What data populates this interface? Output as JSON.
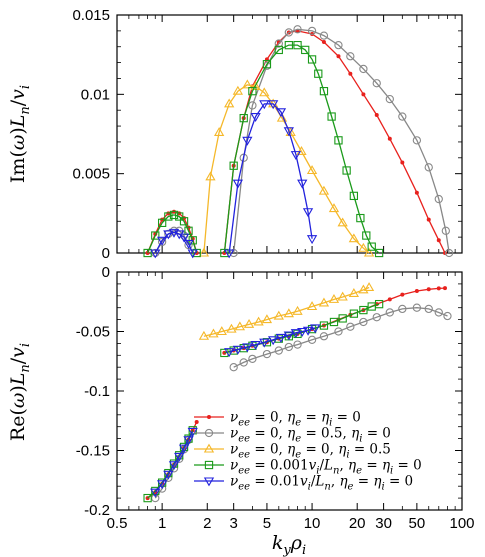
{
  "chart_data": [
    {
      "type": "scatter",
      "panel": "top",
      "ylabel": "Im(ω)L_n/v_i",
      "ylabel_parts": {
        "pre": "Im(",
        "omega": "ω",
        "mid": ")",
        "L": "L",
        "n": "n",
        "slash": "/",
        "v": "v",
        "i": "i"
      },
      "xscale": "log",
      "xlim": [
        0.5,
        100
      ],
      "ylim": [
        0,
        0.015
      ],
      "yticks": [
        0,
        0.005,
        0.01,
        0.015
      ],
      "ytick_labels": [
        "0",
        "0.005",
        "0.01",
        "0.015"
      ],
      "series": [
        {
          "key": "s1",
          "color": "#e8211d",
          "marker": "dot",
          "segments": [
            {
              "x": [
                0.8,
                0.9,
                1.0,
                1.1,
                1.2,
                1.3,
                1.4,
                1.5,
                1.6,
                1.7
              ],
              "y": [
                0.0,
                0.0012,
                0.0021,
                0.0025,
                0.0026,
                0.0025,
                0.0022,
                0.0016,
                0.0009,
                0.0
              ]
            },
            {
              "x": [
                2.6,
                3.0,
                3.5,
                4,
                5,
                6,
                7,
                8,
                10,
                12,
                15,
                18,
                22,
                27,
                33,
                40,
                50,
                60,
                70,
                77
              ],
              "y": [
                0.0,
                0.0055,
                0.0085,
                0.0105,
                0.0122,
                0.0133,
                0.0139,
                0.014,
                0.0138,
                0.0133,
                0.0124,
                0.0113,
                0.01,
                0.0087,
                0.0072,
                0.0057,
                0.0038,
                0.0021,
                0.0008,
                0.0
              ]
            }
          ]
        },
        {
          "key": "s2",
          "color": "#888888",
          "marker": "circle",
          "segments": [
            {
              "x": [
                0.9,
                1.0,
                1.1,
                1.2,
                1.3,
                1.4,
                1.5
              ],
              "y": [
                0.0,
                0.0007,
                0.0012,
                0.0014,
                0.0014,
                0.0011,
                0.0005
              ]
            },
            {
              "x": [
                3.0,
                3.5,
                4,
                5,
                6,
                7,
                8,
                10,
                12,
                15,
                18,
                22,
                27,
                33,
                40,
                50,
                60,
                70,
                78,
                82
              ],
              "y": [
                0.0,
                0.006,
                0.0093,
                0.0118,
                0.0132,
                0.0139,
                0.0141,
                0.014,
                0.0137,
                0.0131,
                0.0124,
                0.0116,
                0.0107,
                0.0097,
                0.0086,
                0.0071,
                0.0054,
                0.0034,
                0.0014,
                0.0
              ]
            }
          ]
        },
        {
          "key": "s3",
          "color": "#f5b82a",
          "marker": "triangle-up",
          "segments": [
            {
              "x": [
                1.9,
                2.1,
                2.4,
                2.8,
                3.2,
                3.7,
                4.2,
                4.8,
                5.5,
                6.3,
                7.2,
                8.5,
                10,
                12,
                14,
                16,
                19,
                22,
                24
              ],
              "y": [
                0.0,
                0.0048,
                0.0076,
                0.0094,
                0.0102,
                0.0106,
                0.0105,
                0.0101,
                0.0094,
                0.0085,
                0.0076,
                0.0064,
                0.0052,
                0.0039,
                0.0028,
                0.0019,
                0.0009,
                0.0003,
                0.0
              ]
            }
          ]
        },
        {
          "key": "s4",
          "color": "#1a9a1a",
          "marker": "square",
          "segments": [
            {
              "x": [
                0.8,
                0.9,
                1.0,
                1.1,
                1.2,
                1.3,
                1.4,
                1.5,
                1.6,
                1.7
              ],
              "y": [
                0.0,
                0.0011,
                0.0019,
                0.0023,
                0.0024,
                0.0023,
                0.002,
                0.0014,
                0.0008,
                0.0
              ]
            },
            {
              "x": [
                2.6,
                3.0,
                3.5,
                4,
                5,
                6,
                7,
                8,
                9,
                10,
                11,
                12,
                13.5,
                15,
                17,
                19,
                21,
                23,
                25,
                28
              ],
              "y": [
                0.0,
                0.0055,
                0.0085,
                0.0102,
                0.0119,
                0.0128,
                0.0131,
                0.0131,
                0.0128,
                0.0122,
                0.0113,
                0.0102,
                0.0086,
                0.0071,
                0.0052,
                0.0036,
                0.0022,
                0.0011,
                0.0004,
                0.0
              ]
            }
          ]
        },
        {
          "key": "s5",
          "color": "#2222dd",
          "marker": "triangle-down",
          "segments": [
            {
              "x": [
                0.9,
                1.0,
                1.1,
                1.2,
                1.3,
                1.4,
                1.5,
                1.6
              ],
              "y": [
                0.0,
                0.0008,
                0.0012,
                0.0013,
                0.0012,
                0.001,
                0.0006,
                0.0
              ]
            },
            {
              "x": [
                2.8,
                3.2,
                3.7,
                4.2,
                4.8,
                5.5,
                6.2,
                7.0,
                7.8,
                8.6,
                9.4,
                10.0
              ],
              "y": [
                0.0,
                0.0044,
                0.0071,
                0.0086,
                0.0094,
                0.0094,
                0.0089,
                0.0077,
                0.0062,
                0.0044,
                0.0026,
                0.0009
              ]
            }
          ]
        }
      ]
    },
    {
      "type": "scatter",
      "panel": "bottom",
      "ylabel": "Re(ω)L_n/v_i",
      "ylabel_parts": {
        "pre": "Re(",
        "omega": "ω",
        "mid": ")",
        "L": "L",
        "n": "n",
        "slash": "/",
        "v": "v",
        "i": "i"
      },
      "xlabel": "k_y ρ_i",
      "xlabel_parts": {
        "k": "k",
        "y": "y",
        "rho": "ρ",
        "i": "i"
      },
      "xscale": "log",
      "xlim": [
        0.5,
        100
      ],
      "ylim": [
        -0.2,
        0
      ],
      "xticks": [
        0.5,
        1,
        2,
        3,
        5,
        10,
        20,
        30,
        50,
        100
      ],
      "xtick_labels": [
        "0.5",
        "1",
        "2",
        "3",
        "5",
        "10",
        "20",
        "30",
        "50",
        "100"
      ],
      "yticks": [
        -0.2,
        -0.15,
        -0.1,
        -0.05,
        0
      ],
      "ytick_labels": [
        "-0.2",
        "-0.15",
        "-0.1",
        "-0.05",
        "0"
      ],
      "series": [
        {
          "key": "s1",
          "color": "#e8211d",
          "marker": "dot",
          "segments": [
            {
              "x": [
                0.8,
                0.9,
                1.0,
                1.1,
                1.2,
                1.3,
                1.4,
                1.5,
                1.6,
                1.7
              ],
              "y": [
                -0.19,
                -0.185,
                -0.178,
                -0.17,
                -0.162,
                -0.155,
                -0.148,
                -0.141,
                -0.133,
                -0.126
              ]
            },
            {
              "x": [
                2.6,
                3,
                3.5,
                4,
                5,
                6,
                7,
                8,
                10,
                12,
                15,
                18,
                22,
                27,
                33,
                40,
                50,
                60,
                70,
                77
              ],
              "y": [
                -0.068,
                -0.066,
                -0.064,
                -0.062,
                -0.059,
                -0.056,
                -0.054,
                -0.052,
                -0.048,
                -0.045,
                -0.04,
                -0.036,
                -0.032,
                -0.027,
                -0.023,
                -0.019,
                -0.016,
                -0.0145,
                -0.0138,
                -0.0135
              ]
            }
          ]
        },
        {
          "key": "s2",
          "color": "#888888",
          "marker": "circle",
          "segments": [
            {
              "x": [
                0.9,
                1.0,
                1.1,
                1.2,
                1.3,
                1.4,
                1.5
              ],
              "y": [
                -0.19,
                -0.182,
                -0.173,
                -0.165,
                -0.157,
                -0.149,
                -0.141
              ]
            },
            {
              "x": [
                3.0,
                3.5,
                4,
                5,
                6,
                7,
                8,
                10,
                12,
                15,
                18,
                22,
                27,
                33,
                40,
                50,
                60,
                70,
                80
              ],
              "y": [
                -0.08,
                -0.076,
                -0.073,
                -0.069,
                -0.066,
                -0.063,
                -0.061,
                -0.057,
                -0.054,
                -0.05,
                -0.046,
                -0.042,
                -0.038,
                -0.034,
                -0.031,
                -0.03,
                -0.031,
                -0.034,
                -0.037
              ]
            }
          ]
        },
        {
          "key": "s3",
          "color": "#f5b82a",
          "marker": "triangle-up",
          "segments": [
            {
              "x": [
                1.9,
                2.2,
                2.5,
                2.9,
                3.3,
                3.8,
                4.4,
                5,
                6,
                7,
                8,
                10,
                12,
                14,
                16,
                19,
                22,
                24
              ],
              "y": [
                -0.054,
                -0.052,
                -0.05,
                -0.048,
                -0.046,
                -0.044,
                -0.042,
                -0.04,
                -0.037,
                -0.035,
                -0.033,
                -0.029,
                -0.026,
                -0.023,
                -0.021,
                -0.018,
                -0.015,
                -0.013
              ]
            }
          ]
        },
        {
          "key": "s4",
          "color": "#1a9a1a",
          "marker": "square",
          "segments": [
            {
              "x": [
                0.8,
                0.9,
                1.0,
                1.1,
                1.2,
                1.3,
                1.4,
                1.5,
                1.6
              ],
              "y": [
                -0.19,
                -0.184,
                -0.177,
                -0.169,
                -0.161,
                -0.154,
                -0.147,
                -0.14,
                -0.133
              ]
            },
            {
              "x": [
                2.6,
                3,
                3.5,
                4,
                5,
                6,
                7,
                8,
                10,
                12,
                14,
                16,
                19,
                22,
                25,
                28
              ],
              "y": [
                -0.068,
                -0.066,
                -0.064,
                -0.062,
                -0.059,
                -0.056,
                -0.054,
                -0.052,
                -0.048,
                -0.045,
                -0.042,
                -0.039,
                -0.035,
                -0.032,
                -0.029,
                -0.027
              ]
            }
          ]
        },
        {
          "key": "s5",
          "color": "#2222dd",
          "marker": "triangle-down",
          "segments": [
            {
              "x": [
                0.9,
                1.0,
                1.1,
                1.2,
                1.3,
                1.4,
                1.5,
                1.6
              ],
              "y": [
                -0.185,
                -0.178,
                -0.17,
                -0.162,
                -0.155,
                -0.148,
                -0.141,
                -0.134
              ]
            },
            {
              "x": [
                2.8,
                3.2,
                3.7,
                4.2,
                4.8,
                5.5,
                6.2,
                7,
                7.8,
                8.6,
                9.4,
                10.5
              ],
              "y": [
                -0.067,
                -0.065,
                -0.063,
                -0.061,
                -0.059,
                -0.057,
                -0.055,
                -0.053,
                -0.051,
                -0.05,
                -0.049,
                -0.047
              ]
            }
          ]
        }
      ],
      "legend": {
        "placement": "lower-right",
        "entries": [
          {
            "key": "s1",
            "parts": [
              "ν",
              "ee",
              " = 0,  ",
              "η",
              "e",
              " = ",
              "η",
              "i",
              " = 0"
            ]
          },
          {
            "key": "s2",
            "parts": [
              "ν",
              "ee",
              " = 0,  ",
              "η",
              "e",
              " = 0.5,  ",
              "η",
              "i",
              " = 0"
            ]
          },
          {
            "key": "s3",
            "parts": [
              "ν",
              "ee",
              " = 0,  ",
              "η",
              "e",
              " = 0,  ",
              "η",
              "i",
              " = 0.5"
            ]
          },
          {
            "key": "s4",
            "parts": [
              "ν",
              "ee",
              " = 0.001",
              "v",
              "i",
              "/",
              "L",
              "n",
              ",  ",
              "η",
              "e",
              " = ",
              "η",
              "i",
              " = 0"
            ]
          },
          {
            "key": "s5",
            "parts": [
              "ν",
              "ee",
              " = 0.01",
              "v",
              "i",
              "/",
              "L",
              "n",
              ",  ",
              "η",
              "e",
              " = ",
              "η",
              "i",
              " = 0"
            ]
          }
        ]
      }
    }
  ]
}
